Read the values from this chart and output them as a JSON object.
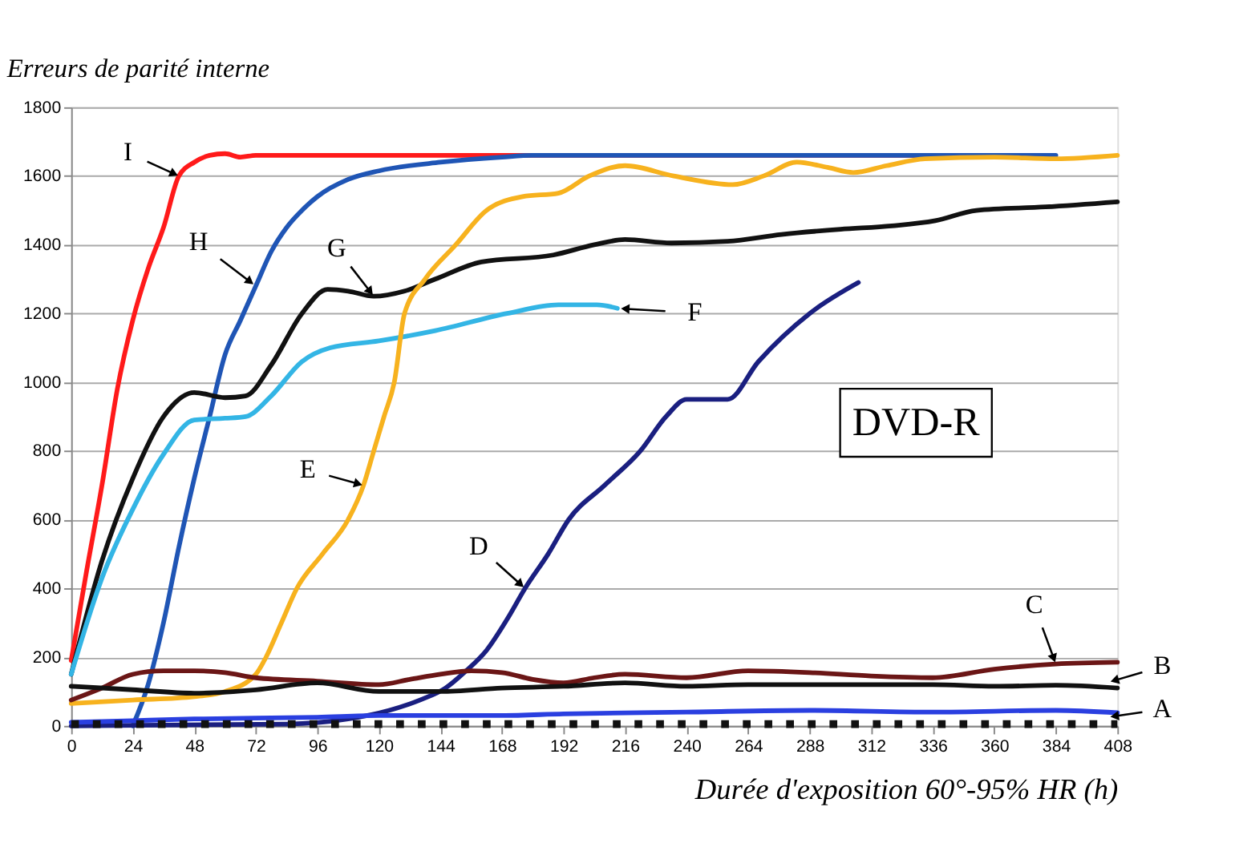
{
  "chart_data": {
    "type": "line",
    "xlabel": "Durée d'exposition 60°-95% HR (h)",
    "ylabel": "Erreurs de parité interne",
    "xlim": [
      0,
      408
    ],
    "xticks": [
      0,
      24,
      48,
      72,
      96,
      120,
      144,
      168,
      192,
      216,
      240,
      264,
      288,
      312,
      336,
      360,
      384,
      408
    ],
    "ylim": [
      0,
      1800
    ],
    "yticks": [
      0,
      200,
      400,
      600,
      800,
      1000,
      1200,
      1400,
      1600,
      1800
    ],
    "grid": "y",
    "marker": "none",
    "series": [
      {
        "color": "#ff1a1a",
        "x": [
          0,
          6,
          12,
          18,
          24,
          30,
          36,
          42,
          48,
          54,
          60,
          66,
          72,
          360
        ],
        "values": [
          190,
          450,
          700,
          980,
          1180,
          1330,
          1450,
          1600,
          1640,
          1660,
          1665,
          1655,
          1660,
          1660
        ]
      },
      {
        "color": "#1f55b5",
        "x": [
          24,
          30,
          36,
          42,
          48,
          54,
          60,
          66,
          72,
          78,
          84,
          90,
          96,
          108,
          120,
          144,
          168,
          180,
          384
        ],
        "values": [
          0,
          120,
          300,
          520,
          720,
          900,
          1080,
          1180,
          1280,
          1380,
          1450,
          1500,
          1540,
          1590,
          1615,
          1640,
          1655,
          1660,
          1660
        ]
      },
      {
        "color": "#111111",
        "x": [
          0,
          12,
          24,
          36,
          48,
          60,
          68,
          78,
          90,
          100,
          108,
          118,
          130,
          142,
          160,
          188,
          204,
          216,
          234,
          256,
          277,
          300,
          320,
          337,
          353,
          380,
          408
        ],
        "values": [
          150,
          480,
          720,
          900,
          970,
          955,
          960,
          1050,
          1200,
          1270,
          1265,
          1250,
          1265,
          1300,
          1350,
          1370,
          1400,
          1415,
          1405,
          1410,
          1430,
          1445,
          1455,
          1470,
          1500,
          1510,
          1525
        ]
      },
      {
        "color": "#33b5e5",
        "x": [
          0,
          12,
          24,
          36,
          48,
          60,
          68,
          78,
          90,
          101,
          120,
          142,
          170,
          190,
          205,
          213
        ],
        "values": [
          150,
          430,
          630,
          790,
          890,
          895,
          900,
          960,
          1060,
          1100,
          1120,
          1150,
          1200,
          1225,
          1225,
          1215
        ]
      },
      {
        "color": "#f7b21e",
        "x": [
          0,
          24,
          48,
          60,
          72,
          76,
          82,
          88,
          98,
          108,
          114,
          118,
          122,
          126,
          130,
          138,
          150,
          162,
          176,
          190,
          202,
          216,
          235,
          258,
          270,
          283,
          295,
          305,
          318,
          333,
          360,
          384,
          408
        ],
        "values": [
          65,
          75,
          85,
          100,
          150,
          200,
          300,
          400,
          500,
          600,
          700,
          800,
          900,
          1000,
          1200,
          1300,
          1400,
          1500,
          1540,
          1550,
          1600,
          1630,
          1600,
          1575,
          1600,
          1640,
          1625,
          1610,
          1630,
          1650,
          1655,
          1650,
          1660
        ]
      },
      {
        "color": "#1a1f80",
        "x": [
          0,
          84,
          108,
          124,
          136,
          146,
          154,
          162,
          170,
          177,
          186,
          194,
          208,
          222,
          232,
          240,
          256,
          268,
          288,
          307
        ],
        "values": [
          0,
          5,
          20,
          45,
          75,
          110,
          160,
          220,
          310,
          400,
          500,
          600,
          700,
          800,
          900,
          950,
          950,
          1060,
          1200,
          1290
        ]
      },
      {
        "color": "#6b1616",
        "x": [
          0,
          12,
          24,
          36,
          48,
          60,
          72,
          96,
          120,
          132,
          144,
          156,
          168,
          180,
          192,
          204,
          216,
          240,
          264,
          288,
          312,
          336,
          360,
          384,
          408
        ],
        "values": [
          75,
          110,
          150,
          160,
          160,
          155,
          140,
          130,
          120,
          135,
          150,
          160,
          155,
          135,
          125,
          140,
          150,
          140,
          160,
          155,
          145,
          140,
          165,
          180,
          185
        ]
      },
      {
        "color": "#111111",
        "x": [
          0,
          24,
          48,
          72,
          96,
          120,
          144,
          168,
          192,
          216,
          240,
          264,
          288,
          312,
          336,
          360,
          384,
          408
        ],
        "values": [
          115,
          105,
          95,
          105,
          125,
          100,
          100,
          110,
          115,
          125,
          115,
          120,
          120,
          120,
          120,
          115,
          118,
          110
        ]
      },
      {
        "color": "#2a3fe0",
        "x": [
          0,
          24,
          48,
          96,
          120,
          168,
          192,
          240,
          288,
          336,
          384,
          408
        ],
        "values": [
          10,
          15,
          20,
          25,
          30,
          30,
          35,
          40,
          45,
          40,
          45,
          38
        ]
      },
      {
        "color": "#111111",
        "line_style": "dotted",
        "x": [
          0,
          408
        ],
        "values": [
          5,
          5
        ]
      }
    ],
    "annotations": [
      "DVD-R",
      {
        "text": "I",
        "x": 42,
        "y": 1600
      },
      {
        "text": "H",
        "x": 72,
        "y": 1280
      },
      {
        "text": "G",
        "x": 118,
        "y": 1250
      },
      {
        "text": "F",
        "x": 213,
        "y": 1215
      },
      {
        "text": "E",
        "x": 114,
        "y": 700
      },
      {
        "text": "D",
        "x": 177,
        "y": 400
      },
      {
        "text": "C",
        "x": 384,
        "y": 180
      },
      {
        "text": "B",
        "x": 405,
        "y": 128
      },
      {
        "text": "A",
        "x": 405,
        "y": 26
      }
    ]
  }
}
